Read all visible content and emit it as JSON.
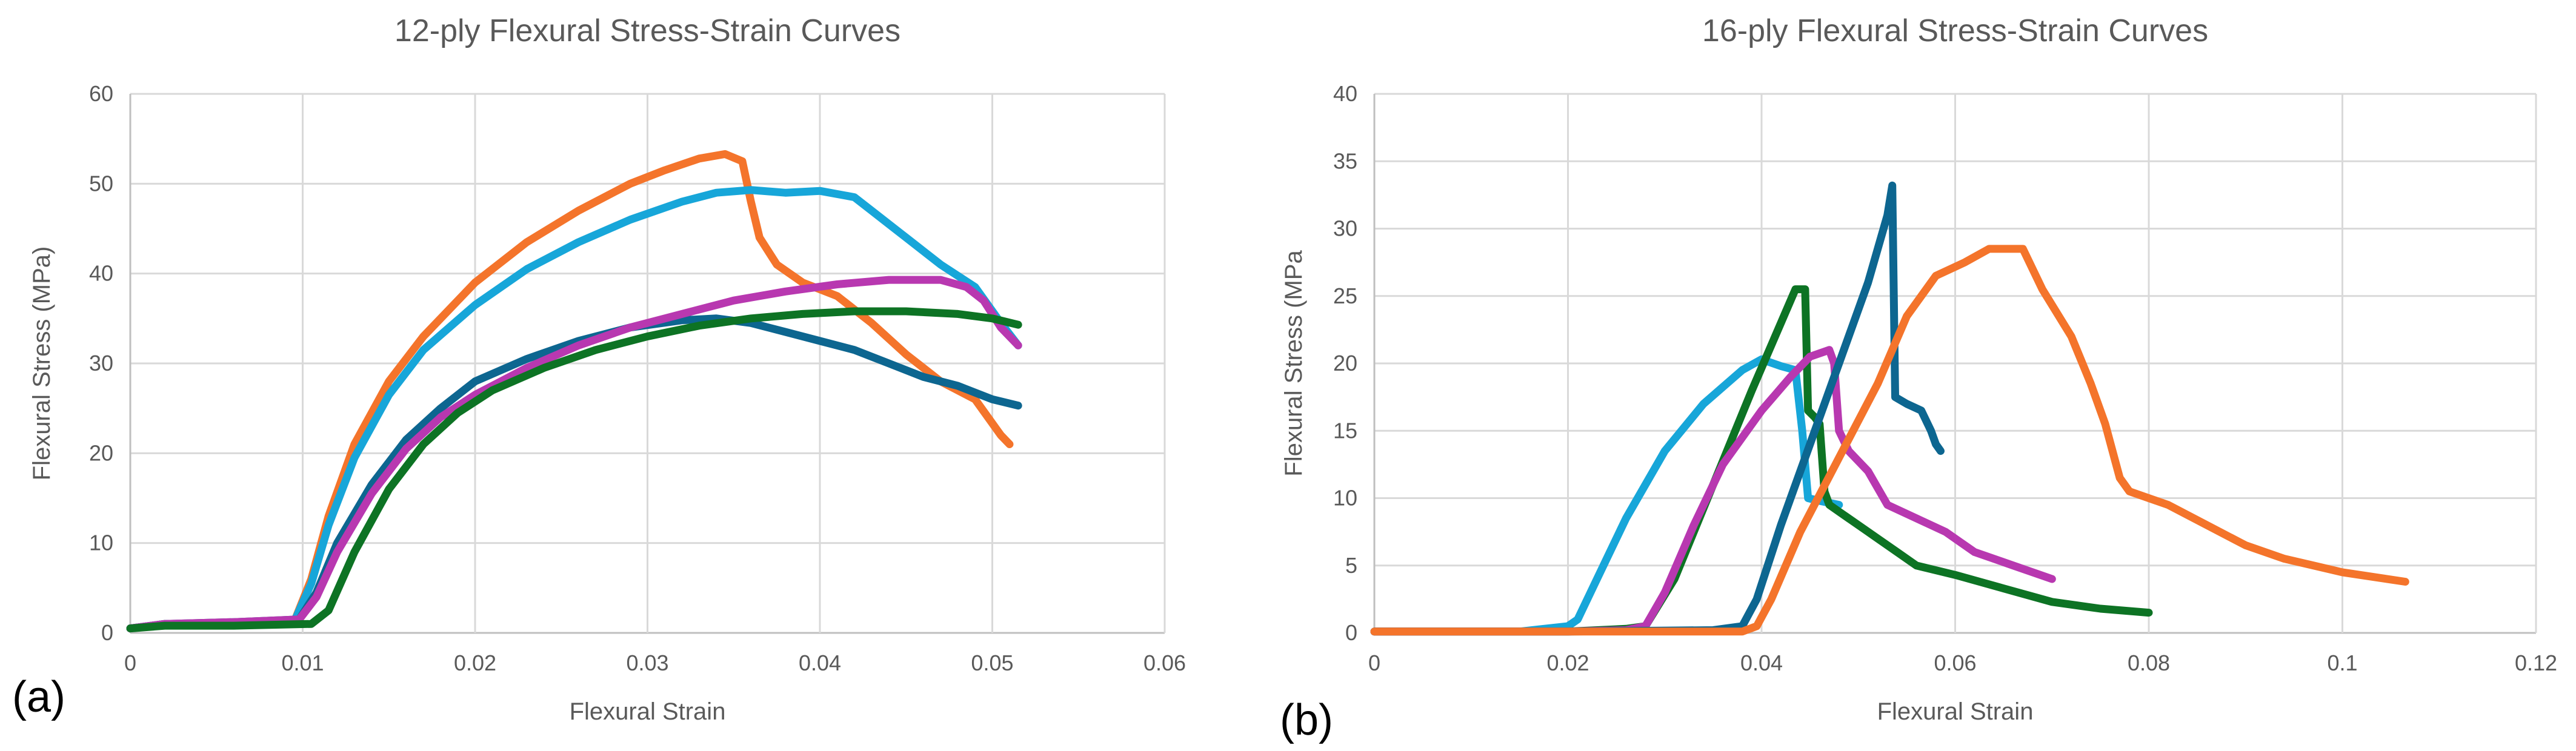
{
  "chart_data": [
    {
      "type": "line",
      "panel_label": "(a)",
      "title": "12-ply Flexural Stress-Strain Curves",
      "xlabel": "Flexural Strain",
      "ylabel": "Flexural Stress (MPa)",
      "xlim": [
        0,
        0.06
      ],
      "ylim": [
        0,
        60
      ],
      "xticks": [
        0,
        0.01,
        0.02,
        0.03,
        0.04,
        0.05,
        0.06
      ],
      "yticks": [
        0,
        10,
        20,
        30,
        40,
        50,
        60
      ],
      "xtick_labels": [
        "0",
        "0.01",
        "0.02",
        "0.03",
        "0.04",
        "0.05",
        "0.06"
      ],
      "ytick_labels": [
        "0",
        "10",
        "20",
        "30",
        "40",
        "50",
        "60"
      ],
      "grid": true,
      "series": [
        {
          "name": "orange",
          "color": "#f4742b",
          "points": [
            [
              0,
              0.5
            ],
            [
              0.002,
              1
            ],
            [
              0.006,
              1
            ],
            [
              0.0095,
              1.2
            ],
            [
              0.0105,
              6
            ],
            [
              0.0115,
              13
            ],
            [
              0.013,
              21
            ],
            [
              0.015,
              28
            ],
            [
              0.017,
              33
            ],
            [
              0.02,
              39
            ],
            [
              0.023,
              43.5
            ],
            [
              0.026,
              47
            ],
            [
              0.029,
              50
            ],
            [
              0.031,
              51.5
            ],
            [
              0.033,
              52.8
            ],
            [
              0.0345,
              53.3
            ],
            [
              0.0355,
              52.5
            ],
            [
              0.036,
              48
            ],
            [
              0.0365,
              44
            ],
            [
              0.0375,
              41
            ],
            [
              0.039,
              39
            ],
            [
              0.041,
              37.5
            ],
            [
              0.043,
              34.5
            ],
            [
              0.045,
              31
            ],
            [
              0.047,
              28
            ],
            [
              0.049,
              26
            ],
            [
              0.0505,
              22
            ],
            [
              0.051,
              21
            ]
          ]
        },
        {
          "name": "light-blue",
          "color": "#17a6d9",
          "points": [
            [
              0,
              0.5
            ],
            [
              0.002,
              1
            ],
            [
              0.006,
              1
            ],
            [
              0.0095,
              1.2
            ],
            [
              0.0105,
              5.5
            ],
            [
              0.0115,
              12
            ],
            [
              0.013,
              19.5
            ],
            [
              0.015,
              26.5
            ],
            [
              0.017,
              31.5
            ],
            [
              0.02,
              36.5
            ],
            [
              0.023,
              40.5
            ],
            [
              0.026,
              43.5
            ],
            [
              0.029,
              46
            ],
            [
              0.032,
              48
            ],
            [
              0.034,
              49
            ],
            [
              0.036,
              49.3
            ],
            [
              0.038,
              49
            ],
            [
              0.04,
              49.2
            ],
            [
              0.042,
              48.5
            ],
            [
              0.043,
              47
            ],
            [
              0.045,
              44
            ],
            [
              0.047,
              41
            ],
            [
              0.049,
              38.5
            ],
            [
              0.0505,
              34.5
            ],
            [
              0.0515,
              32
            ]
          ]
        },
        {
          "name": "dark-blue",
          "color": "#0d6690",
          "points": [
            [
              0,
              0.5
            ],
            [
              0.002,
              1
            ],
            [
              0.006,
              1.2
            ],
            [
              0.0098,
              1.5
            ],
            [
              0.0108,
              4.5
            ],
            [
              0.012,
              10
            ],
            [
              0.014,
              16.5
            ],
            [
              0.016,
              21.5
            ],
            [
              0.018,
              25
            ],
            [
              0.02,
              28
            ],
            [
              0.023,
              30.5
            ],
            [
              0.026,
              32.5
            ],
            [
              0.029,
              34
            ],
            [
              0.032,
              34.8
            ],
            [
              0.034,
              35
            ],
            [
              0.036,
              34.5
            ],
            [
              0.038,
              33.5
            ],
            [
              0.04,
              32.5
            ],
            [
              0.042,
              31.5
            ],
            [
              0.044,
              30
            ],
            [
              0.046,
              28.5
            ],
            [
              0.048,
              27.5
            ],
            [
              0.05,
              26
            ],
            [
              0.0515,
              25.3
            ]
          ]
        },
        {
          "name": "magenta",
          "color": "#b838b0",
          "points": [
            [
              0,
              0.5
            ],
            [
              0.002,
              1
            ],
            [
              0.006,
              1.2
            ],
            [
              0.0098,
              1.5
            ],
            [
              0.0108,
              4
            ],
            [
              0.012,
              9
            ],
            [
              0.014,
              15.5
            ],
            [
              0.016,
              20.5
            ],
            [
              0.018,
              24
            ],
            [
              0.02,
              26.5
            ],
            [
              0.023,
              29.5
            ],
            [
              0.026,
              32
            ],
            [
              0.029,
              34
            ],
            [
              0.032,
              35.5
            ],
            [
              0.035,
              37
            ],
            [
              0.038,
              38
            ],
            [
              0.041,
              38.8
            ],
            [
              0.044,
              39.3
            ],
            [
              0.047,
              39.3
            ],
            [
              0.0485,
              38.5
            ],
            [
              0.0495,
              37
            ],
            [
              0.0505,
              34
            ],
            [
              0.0515,
              32
            ]
          ]
        },
        {
          "name": "green",
          "color": "#0d7324",
          "points": [
            [
              0,
              0.5
            ],
            [
              0.002,
              0.8
            ],
            [
              0.006,
              0.8
            ],
            [
              0.0105,
              1
            ],
            [
              0.0115,
              2.5
            ],
            [
              0.013,
              9
            ],
            [
              0.015,
              16
            ],
            [
              0.017,
              21
            ],
            [
              0.019,
              24.5
            ],
            [
              0.021,
              27
            ],
            [
              0.024,
              29.5
            ],
            [
              0.027,
              31.5
            ],
            [
              0.03,
              33
            ],
            [
              0.033,
              34.2
            ],
            [
              0.036,
              35
            ],
            [
              0.039,
              35.5
            ],
            [
              0.042,
              35.8
            ],
            [
              0.045,
              35.8
            ],
            [
              0.048,
              35.5
            ],
            [
              0.05,
              35
            ],
            [
              0.0515,
              34.3
            ]
          ]
        }
      ]
    },
    {
      "type": "line",
      "panel_label": "(b)",
      "title": "16-ply Flexural Stress-Strain Curves",
      "xlabel": "Flexural Strain",
      "ylabel": "Flexural Stress (MPa",
      "xlim": [
        0,
        0.12
      ],
      "ylim": [
        0,
        40
      ],
      "xticks": [
        0,
        0.02,
        0.04,
        0.06,
        0.08,
        0.1,
        0.12
      ],
      "yticks": [
        0,
        5,
        10,
        15,
        20,
        25,
        30,
        35,
        40
      ],
      "xtick_labels": [
        "0",
        "0.02",
        "0.04",
        "0.06",
        "0.08",
        "0.1",
        "0.12"
      ],
      "ytick_labels": [
        "0",
        "5",
        "10",
        "15",
        "20",
        "25",
        "30",
        "35",
        "40"
      ],
      "grid": true,
      "series": [
        {
          "name": "light-blue",
          "color": "#17a6d9",
          "points": [
            [
              0,
              0.1
            ],
            [
              0.015,
              0.1
            ],
            [
              0.02,
              0.5
            ],
            [
              0.021,
              1
            ],
            [
              0.023,
              4
            ],
            [
              0.026,
              8.5
            ],
            [
              0.03,
              13.5
            ],
            [
              0.034,
              17
            ],
            [
              0.038,
              19.5
            ],
            [
              0.04,
              20.3
            ],
            [
              0.042,
              19.8
            ],
            [
              0.0435,
              19.5
            ],
            [
              0.0442,
              15
            ],
            [
              0.0448,
              10
            ],
            [
              0.046,
              9.8
            ],
            [
              0.048,
              9.5
            ]
          ]
        },
        {
          "name": "green",
          "color": "#0d7324",
          "points": [
            [
              0,
              0.1
            ],
            [
              0.02,
              0.1
            ],
            [
              0.026,
              0.3
            ],
            [
              0.028,
              0.5
            ],
            [
              0.031,
              4
            ],
            [
              0.035,
              11
            ],
            [
              0.039,
              18
            ],
            [
              0.042,
              23
            ],
            [
              0.0435,
              25.5
            ],
            [
              0.0445,
              25.5
            ],
            [
              0.0448,
              16.5
            ],
            [
              0.0455,
              16
            ],
            [
              0.046,
              15.5
            ],
            [
              0.0465,
              10.5
            ],
            [
              0.047,
              9.5
            ],
            [
              0.048,
              9
            ],
            [
              0.051,
              7.5
            ],
            [
              0.054,
              6
            ],
            [
              0.056,
              5
            ],
            [
              0.06,
              4.3
            ],
            [
              0.065,
              3.3
            ],
            [
              0.07,
              2.3
            ],
            [
              0.075,
              1.8
            ],
            [
              0.08,
              1.5
            ]
          ]
        },
        {
          "name": "magenta",
          "color": "#b838b0",
          "points": [
            [
              0,
              0.1
            ],
            [
              0.02,
              0.1
            ],
            [
              0.026,
              0.2
            ],
            [
              0.028,
              0.5
            ],
            [
              0.03,
              3
            ],
            [
              0.033,
              8
            ],
            [
              0.036,
              12.5
            ],
            [
              0.04,
              16.5
            ],
            [
              0.043,
              19
            ],
            [
              0.045,
              20.5
            ],
            [
              0.047,
              21
            ],
            [
              0.0475,
              20
            ],
            [
              0.048,
              15
            ],
            [
              0.049,
              13.5
            ],
            [
              0.051,
              12
            ],
            [
              0.053,
              9.5
            ],
            [
              0.056,
              8.5
            ],
            [
              0.059,
              7.5
            ],
            [
              0.062,
              6
            ],
            [
              0.066,
              5
            ],
            [
              0.07,
              4
            ]
          ]
        },
        {
          "name": "dark-blue",
          "color": "#0d6690",
          "points": [
            [
              0,
              0.1
            ],
            [
              0.02,
              0.1
            ],
            [
              0.035,
              0.2
            ],
            [
              0.038,
              0.5
            ],
            [
              0.0395,
              2.5
            ],
            [
              0.042,
              8
            ],
            [
              0.045,
              14
            ],
            [
              0.048,
              20
            ],
            [
              0.051,
              26
            ],
            [
              0.053,
              31
            ],
            [
              0.0535,
              33.2
            ],
            [
              0.0538,
              17.5
            ],
            [
              0.055,
              17
            ],
            [
              0.0565,
              16.5
            ],
            [
              0.0575,
              15
            ],
            [
              0.058,
              14
            ],
            [
              0.0585,
              13.5
            ]
          ]
        },
        {
          "name": "orange",
          "color": "#f4742b",
          "points": [
            [
              0,
              0.1
            ],
            [
              0.035,
              0.1
            ],
            [
              0.038,
              0.1
            ],
            [
              0.0395,
              0.5
            ],
            [
              0.041,
              2.5
            ],
            [
              0.044,
              7.5
            ],
            [
              0.048,
              13
            ],
            [
              0.052,
              18.5
            ],
            [
              0.055,
              23.5
            ],
            [
              0.058,
              26.5
            ],
            [
              0.061,
              27.5
            ],
            [
              0.0635,
              28.5
            ],
            [
              0.067,
              28.5
            ],
            [
              0.069,
              25.5
            ],
            [
              0.072,
              22
            ],
            [
              0.074,
              18.5
            ],
            [
              0.0755,
              15.5
            ],
            [
              0.077,
              11.5
            ],
            [
              0.078,
              10.5
            ],
            [
              0.082,
              9.5
            ],
            [
              0.086,
              8
            ],
            [
              0.09,
              6.5
            ],
            [
              0.094,
              5.5
            ],
            [
              0.1,
              4.5
            ],
            [
              0.1065,
              3.8
            ]
          ]
        }
      ]
    }
  ]
}
